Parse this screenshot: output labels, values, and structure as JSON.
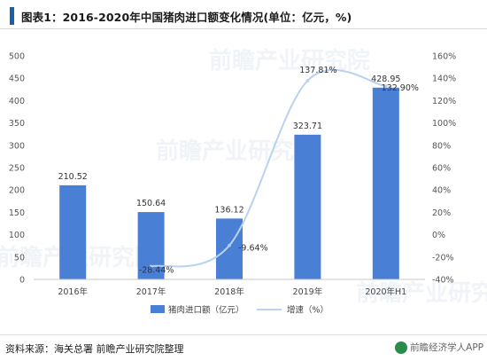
{
  "header": {
    "title": "图表1：2016-2020年中国猪肉进口额变化情况(单位：亿元，%)"
  },
  "chart_data": {
    "type": "bar",
    "categories": [
      "2016年",
      "2017年",
      "2018年",
      "2019年",
      "2020年H1"
    ],
    "series": [
      {
        "name": "猪肉进口额（亿元）",
        "type": "bar",
        "axis": "left",
        "values": [
          210.52,
          150.64,
          136.12,
          323.71,
          428.95
        ],
        "labels": [
          "210.52",
          "150.64",
          "136.12",
          "323.71",
          "428.95"
        ],
        "color": "#4a7fd6"
      },
      {
        "name": "增速（%）",
        "type": "line",
        "axis": "right",
        "values": [
          null,
          -28.44,
          -9.64,
          137.81,
          132.9
        ],
        "labels": [
          "",
          "-28.44%",
          "-9.64%",
          "137.81%",
          "132.90%"
        ],
        "color": "#b9d2ee"
      }
    ],
    "y_left": {
      "lim": [
        0,
        500
      ],
      "ticks": [
        "0",
        "50",
        "100",
        "150",
        "200",
        "250",
        "300",
        "350",
        "400",
        "450",
        "500"
      ]
    },
    "y_right": {
      "lim": [
        -40,
        160
      ],
      "ticks": [
        "-40%",
        "-20%",
        "0%",
        "20%",
        "40%",
        "60%",
        "80%",
        "100%",
        "120%",
        "140%",
        "160%"
      ]
    },
    "grid": false,
    "legend": "bottom"
  },
  "footer": {
    "source": "资料来源：海关总署 前瞻产业研究院整理",
    "brand": "前瞻经济学人APP"
  },
  "watermarks": [
    "前瞻产业研究院",
    "前瞻产业研究院",
    "前瞻产业研究院",
    "前瞻产业研究院"
  ]
}
